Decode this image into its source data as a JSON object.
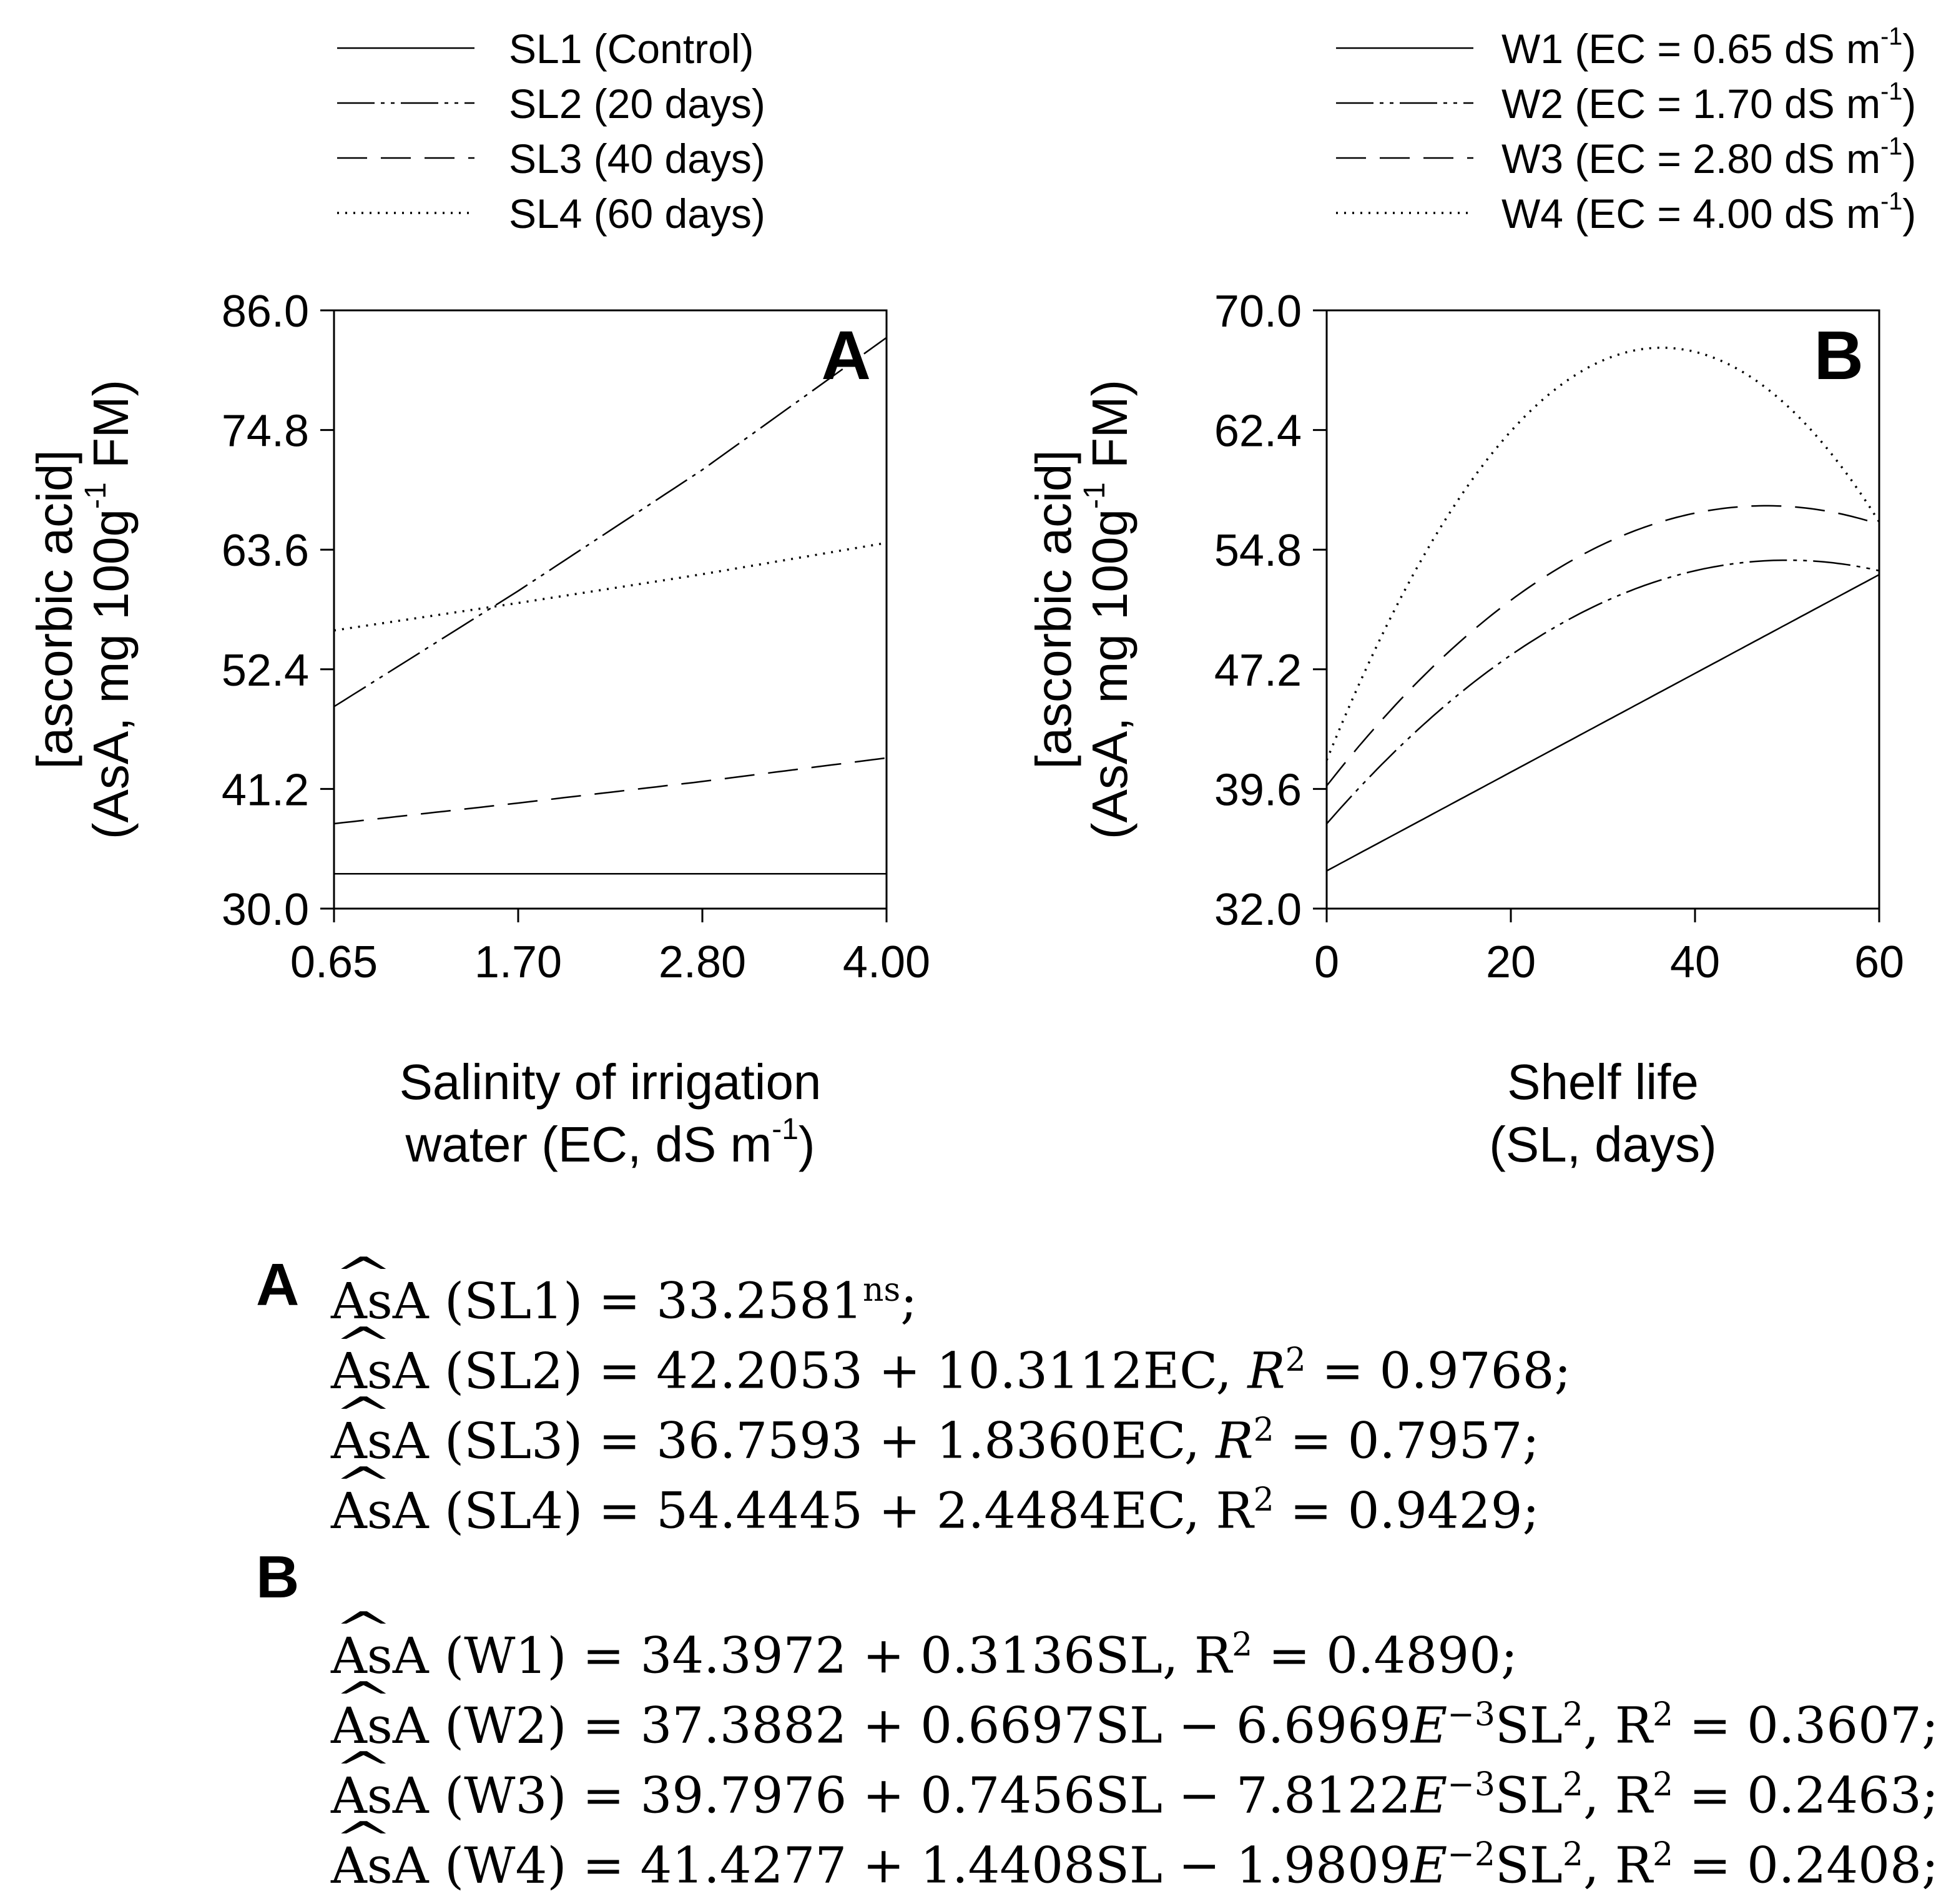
{
  "chart_data": [
    {
      "type": "line",
      "panel": "A",
      "title": "",
      "xlabel_line1": "Salinity of irrigation",
      "xlabel_line2": "water (EC, dS m-1)",
      "ylabel_line1": "[ascorbic acid]",
      "ylabel_line2": "(AsA, mg 100g-1 FM)",
      "x_tick_labels": [
        "0.65",
        "1.70",
        "2.80",
        "4.00"
      ],
      "y_tick_labels": [
        "30.0",
        "41.2",
        "52.4",
        "63.6",
        "74.8",
        "86.0"
      ],
      "ylim": [
        30.0,
        86.0
      ],
      "legend_placement": "top-left-above",
      "series": [
        {
          "name": "SL1 (Control)",
          "dash": "solid",
          "model": "const",
          "a": 33.2581,
          "b": 0,
          "c": 0
        },
        {
          "name": "SL2 (20 days)",
          "dash": "dashdotdot",
          "model": "linear",
          "a": 42.2053,
          "b": 10.3112,
          "c": 0
        },
        {
          "name": "SL3 (40 days)",
          "dash": "dashed",
          "model": "linear",
          "a": 36.7593,
          "b": 1.836,
          "c": 0
        },
        {
          "name": "SL4 (60 days)",
          "dash": "dotted",
          "model": "linear",
          "a": 54.4445,
          "b": 2.4484,
          "c": 0
        }
      ],
      "x_values": [
        0.65,
        1.7,
        2.8,
        4.0
      ]
    },
    {
      "type": "line",
      "panel": "B",
      "title": "",
      "xlabel_line1": "Shelf life",
      "xlabel_line2": "(SL, days)",
      "ylabel_line1": "[ascorbic acid]",
      "ylabel_line2": "(AsA, mg 100g-1 FM)",
      "x_tick_labels": [
        "0",
        "20",
        "40",
        "60"
      ],
      "y_tick_labels": [
        "32.0",
        "39.6",
        "47.2",
        "54.8",
        "62.4",
        "70.0"
      ],
      "ylim": [
        32.0,
        70.0
      ],
      "xlim": [
        0,
        60
      ],
      "legend_placement": "top-right-above",
      "series": [
        {
          "name": "W1 (EC = 0.65 dS m-1)",
          "dash": "solid",
          "a": 34.3972,
          "b": 0.3136,
          "c": 0
        },
        {
          "name": "W2 (EC = 1.70 dS m-1)",
          "dash": "dashdotdot",
          "a": 37.3882,
          "b": 0.6697,
          "c": -0.0066969
        },
        {
          "name": "W3 (EC = 2.80 dS m-1)",
          "dash": "dashed",
          "a": 39.7976,
          "b": 0.7456,
          "c": -0.0078122
        },
        {
          "name": "W4 (EC = 4.00 dS m-1)",
          "dash": "dotted",
          "a": 41.4277,
          "b": 1.4408,
          "c": -0.019809
        }
      ]
    }
  ],
  "panel_labels": {
    "a": "A",
    "b": "B"
  },
  "equations": {
    "a_label": "A",
    "b_label": "B",
    "a": [
      {
        "lhs": "AsA (SL1)",
        "rhs": " = 33.2581",
        "sup": "ns",
        "tail": ";"
      },
      {
        "lhs": "AsA (SL2)",
        "rhs": " = 42.2053 + 10.3112EC, ",
        "r": "R",
        "sup": "2",
        "tail": " = 0.9768;"
      },
      {
        "lhs": "AsA (SL3)",
        "rhs": " = 36.7593 + 1.8360EC, ",
        "r": "R",
        "sup": "2",
        "tail": " = 0.7957;"
      },
      {
        "lhs": "AsA (SL4)",
        "rhs": " = 54.4445 + 2.4484EC, ",
        "r": "R",
        "sup": "2",
        "tail": " = 0.9429;"
      }
    ],
    "b": [
      {
        "lhs": "AsA (W1)",
        "rhs": " = 34.3972 + 0.3136SL, R",
        "sup": "2",
        "tail": " = 0.4890;"
      },
      {
        "lhs": "AsA (W2)",
        "rhs": " = 37.3882 + 0.6697SL − 6.6969",
        "e": "E",
        "esup": "−3",
        "sl": "SL",
        "sup": "2",
        "tail": ", R",
        "sup2": "2",
        "tail2": " = 0.3607;"
      },
      {
        "lhs": "AsA (W3)",
        "rhs": " = 39.7976 + 0.7456SL − 7.8122",
        "e": "E",
        "esup": "−3",
        "sl": "SL",
        "sup": "2",
        "tail": ", R",
        "sup2": "2",
        "tail2": " = 0.2463;"
      },
      {
        "lhs": "AsA (W4)",
        "rhs": " = 41.4277 + 1.4408SL − 1.9809",
        "e": "E",
        "esup": "−2",
        "sl": "SL",
        "sup": "2",
        "tail": ", R",
        "sup2": "2",
        "tail2": " = 0.2408;"
      }
    ]
  }
}
